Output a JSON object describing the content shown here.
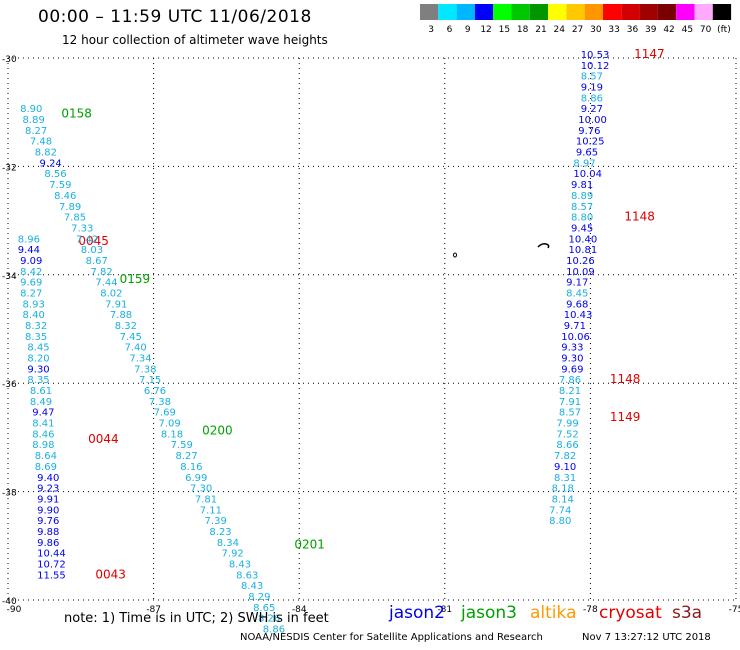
{
  "header": {
    "title": "00:00 – 11:59 UTC 11/06/2018",
    "subtitle": "12 hour collection of altimeter wave heights"
  },
  "colorbar": {
    "labels": [
      "3",
      "6",
      "9",
      "12",
      "15",
      "18",
      "21",
      "24",
      "27",
      "30",
      "33",
      "36",
      "39",
      "42",
      "45",
      "70",
      "(ft)"
    ],
    "colors": [
      "#7f7f7f",
      "#00e8ff",
      "#00b7ff",
      "#0000ff",
      "#00ff00",
      "#00c800",
      "#009600",
      "#ffff00",
      "#ffc800",
      "#ff9600",
      "#ff0000",
      "#d20000",
      "#a00000",
      "#780000",
      "#ff00ff",
      "#ffaaff",
      "#000000"
    ]
  },
  "footer": {
    "note": "note: 1) Time is in UTC; 2) SWH is in feet",
    "credit": "NOAA/NESDIS Center for Satellite Applications and Research",
    "timestamp": "Nov  7 13:27:12 UTC 2018"
  },
  "missions": {
    "jason2": "jason2",
    "jason3": "jason3",
    "altika": "altika",
    "cryosat": "cryosat",
    "s3a": "s3a"
  },
  "colors": {
    "jason2": "#0000ee",
    "jason3": "#00a000",
    "cryosat": "#e00000",
    "light": "#1ab0e0"
  },
  "chart_data": {
    "type": "scatter",
    "xlim": [
      -90,
      -75
    ],
    "ylim": [
      -40,
      -30
    ],
    "x_ticks": [
      "-90",
      "-87",
      "-84",
      "-81",
      "-78",
      "-75"
    ],
    "y_ticks": [
      "-30",
      "-32",
      "-34",
      "-36",
      "-38",
      "-40"
    ],
    "grid": true,
    "tracks": [
      {
        "mission": "jason2",
        "times": [
          {
            "label": "0043",
            "x": -88.2,
            "y": -39.6
          },
          {
            "label": "0044",
            "x": -88.35,
            "y": -37.1
          },
          {
            "label": "0045",
            "x": -88.55,
            "y": -33.45
          }
        ],
        "points": [
          {
            "x": -89.4,
            "y": -39.6,
            "v": "11.55",
            "c": "jason2"
          },
          {
            "x": -89.4,
            "y": -39.4,
            "v": "10.72",
            "c": "jason2"
          },
          {
            "x": -89.4,
            "y": -39.2,
            "v": "10.44",
            "c": "jason2"
          },
          {
            "x": -89.4,
            "y": -39.0,
            "v": "9.86",
            "c": "jason2"
          },
          {
            "x": -89.4,
            "y": -38.8,
            "v": "9.88",
            "c": "jason2"
          },
          {
            "x": -89.4,
            "y": -38.6,
            "v": "9.76",
            "c": "jason2"
          },
          {
            "x": -89.4,
            "y": -38.4,
            "v": "9.90",
            "c": "jason2"
          },
          {
            "x": -89.4,
            "y": -38.2,
            "v": "9.91",
            "c": "jason2"
          },
          {
            "x": -89.4,
            "y": -38.0,
            "v": "9.23",
            "c": "jason2"
          },
          {
            "x": -89.4,
            "y": -37.8,
            "v": "9.40",
            "c": "jason2"
          },
          {
            "x": -89.45,
            "y": -37.6,
            "v": "8.69",
            "c": "light"
          },
          {
            "x": -89.45,
            "y": -37.4,
            "v": "8.64",
            "c": "light"
          },
          {
            "x": -89.5,
            "y": -37.2,
            "v": "8.98",
            "c": "light"
          },
          {
            "x": -89.5,
            "y": -37.0,
            "v": "8.46",
            "c": "light"
          },
          {
            "x": -89.5,
            "y": -36.8,
            "v": "8.41",
            "c": "light"
          },
          {
            "x": -89.5,
            "y": -36.6,
            "v": "9.47",
            "c": "jason2"
          },
          {
            "x": -89.55,
            "y": -36.4,
            "v": "8.49",
            "c": "light"
          },
          {
            "x": -89.55,
            "y": -36.2,
            "v": "8.61",
            "c": "light"
          },
          {
            "x": -89.6,
            "y": -36.0,
            "v": "8.35",
            "c": "light"
          },
          {
            "x": -89.6,
            "y": -35.8,
            "v": "9.30",
            "c": "jason2"
          },
          {
            "x": -89.6,
            "y": -35.6,
            "v": "8.20",
            "c": "light"
          },
          {
            "x": -89.6,
            "y": -35.4,
            "v": "8.45",
            "c": "light"
          },
          {
            "x": -89.65,
            "y": -35.2,
            "v": "8.35",
            "c": "light"
          },
          {
            "x": -89.65,
            "y": -35.0,
            "v": "8.32",
            "c": "light"
          },
          {
            "x": -89.7,
            "y": -34.8,
            "v": "8.40",
            "c": "light"
          },
          {
            "x": -89.7,
            "y": -34.6,
            "v": "8.93",
            "c": "light"
          },
          {
            "x": -89.75,
            "y": -34.4,
            "v": "8.27",
            "c": "light"
          },
          {
            "x": -89.75,
            "y": -34.2,
            "v": "9.69",
            "c": "light"
          },
          {
            "x": -89.75,
            "y": -34.0,
            "v": "8.42",
            "c": "light"
          },
          {
            "x": -89.75,
            "y": -33.8,
            "v": "9.09",
            "c": "jason2"
          },
          {
            "x": -89.8,
            "y": -33.6,
            "v": "9.44",
            "c": "jason2"
          },
          {
            "x": -89.8,
            "y": -33.4,
            "v": "8.96",
            "c": "light"
          }
        ]
      },
      {
        "mission": "jason3",
        "times": [
          {
            "label": "0158",
            "x": -88.9,
            "y": -31.1
          },
          {
            "label": "0159",
            "x": -87.7,
            "y": -34.15
          },
          {
            "label": "0200",
            "x": -86.0,
            "y": -36.95
          },
          {
            "label": "0201",
            "x": -84.1,
            "y": -39.05
          }
        ],
        "points": [
          {
            "x": -89.75,
            "y": -31.0,
            "v": "8.90",
            "c": "light"
          },
          {
            "x": -89.7,
            "y": -31.2,
            "v": "8.89",
            "c": "light"
          },
          {
            "x": -89.65,
            "y": -31.4,
            "v": "8.27",
            "c": "light"
          },
          {
            "x": -89.55,
            "y": -31.6,
            "v": "7.48",
            "c": "light"
          },
          {
            "x": -89.45,
            "y": -31.8,
            "v": "8.82",
            "c": "light"
          },
          {
            "x": -89.35,
            "y": -32.0,
            "v": "9.24",
            "c": "jason2"
          },
          {
            "x": -89.25,
            "y": -32.2,
            "v": "8.56",
            "c": "light"
          },
          {
            "x": -89.15,
            "y": -32.4,
            "v": "7.59",
            "c": "light"
          },
          {
            "x": -89.05,
            "y": -32.6,
            "v": "8.46",
            "c": "light"
          },
          {
            "x": -88.95,
            "y": -32.8,
            "v": "7.89",
            "c": "light"
          },
          {
            "x": -88.85,
            "y": -33.0,
            "v": "7.85",
            "c": "light"
          },
          {
            "x": -88.7,
            "y": -33.2,
            "v": "7.33",
            "c": "light"
          },
          {
            "x": -88.6,
            "y": -33.4,
            "v": "7.42",
            "c": "light"
          },
          {
            "x": -88.5,
            "y": -33.6,
            "v": "8.03",
            "c": "light"
          },
          {
            "x": -88.4,
            "y": -33.8,
            "v": "8.67",
            "c": "light"
          },
          {
            "x": -88.3,
            "y": -34.0,
            "v": "7.82",
            "c": "light"
          },
          {
            "x": -88.2,
            "y": -34.2,
            "v": "7.44",
            "c": "light"
          },
          {
            "x": -88.1,
            "y": -34.4,
            "v": "8.02",
            "c": "light"
          },
          {
            "x": -88.0,
            "y": -34.6,
            "v": "7.91",
            "c": "light"
          },
          {
            "x": -87.9,
            "y": -34.8,
            "v": "7.88",
            "c": "light"
          },
          {
            "x": -87.8,
            "y": -35.0,
            "v": "8.32",
            "c": "light"
          },
          {
            "x": -87.7,
            "y": -35.2,
            "v": "7.45",
            "c": "light"
          },
          {
            "x": -87.6,
            "y": -35.4,
            "v": "7.40",
            "c": "light"
          },
          {
            "x": -87.5,
            "y": -35.6,
            "v": "7.34",
            "c": "light"
          },
          {
            "x": -87.4,
            "y": -35.8,
            "v": "7.38",
            "c": "light"
          },
          {
            "x": -87.3,
            "y": -36.0,
            "v": "7.15",
            "c": "light"
          },
          {
            "x": -87.2,
            "y": -36.2,
            "v": "6.76",
            "c": "light"
          },
          {
            "x": -87.1,
            "y": -36.4,
            "v": "7.38",
            "c": "light"
          },
          {
            "x": -87.0,
            "y": -36.6,
            "v": "7.69",
            "c": "light"
          },
          {
            "x": -86.9,
            "y": -36.8,
            "v": "7.09",
            "c": "light"
          },
          {
            "x": -86.85,
            "y": -37.0,
            "v": "8.18",
            "c": "light"
          },
          {
            "x": -86.65,
            "y": -37.2,
            "v": "7.59",
            "c": "light"
          },
          {
            "x": -86.55,
            "y": -37.4,
            "v": "8.27",
            "c": "light"
          },
          {
            "x": -86.45,
            "y": -37.6,
            "v": "8.16",
            "c": "light"
          },
          {
            "x": -86.35,
            "y": -37.8,
            "v": "6.99",
            "c": "light"
          },
          {
            "x": -86.25,
            "y": -38.0,
            "v": "7.30",
            "c": "light"
          },
          {
            "x": -86.15,
            "y": -38.2,
            "v": "7.81",
            "c": "light"
          },
          {
            "x": -86.05,
            "y": -38.4,
            "v": "7.11",
            "c": "light"
          },
          {
            "x": -85.95,
            "y": -38.6,
            "v": "7.39",
            "c": "light"
          },
          {
            "x": -85.85,
            "y": -38.8,
            "v": "8.23",
            "c": "light"
          },
          {
            "x": -85.7,
            "y": -39.0,
            "v": "8.34",
            "c": "light"
          },
          {
            "x": -85.6,
            "y": -39.2,
            "v": "7.92",
            "c": "light"
          },
          {
            "x": -85.45,
            "y": -39.4,
            "v": "8.43",
            "c": "light"
          },
          {
            "x": -85.3,
            "y": -39.6,
            "v": "8.63",
            "c": "light"
          },
          {
            "x": -85.2,
            "y": -39.8,
            "v": "8.43",
            "c": "light"
          },
          {
            "x": -85.05,
            "y": -40.0,
            "v": "8.29",
            "c": "light"
          },
          {
            "x": -84.95,
            "y": -40.2,
            "v": "8.65",
            "c": "light"
          },
          {
            "x": -84.85,
            "y": -40.4,
            "v": "8.26",
            "c": "light"
          },
          {
            "x": -84.75,
            "y": -40.6,
            "v": "8.86",
            "c": "light"
          }
        ]
      },
      {
        "mission": "cryosat",
        "times": [
          {
            "label": "1147",
            "x": -77.1,
            "y": -30.0
          },
          {
            "label": "1148",
            "x": -77.3,
            "y": -33.0
          },
          {
            "label": "1148",
            "x": -77.6,
            "y": -36.0
          },
          {
            "label": "1149",
            "x": -77.6,
            "y": -36.7
          }
        ],
        "points": [
          {
            "x": -78.2,
            "y": -30.0,
            "v": "10.53",
            "c": "jason2"
          },
          {
            "x": -78.2,
            "y": -30.2,
            "v": "10.12",
            "c": "jason2"
          },
          {
            "x": -78.2,
            "y": -30.4,
            "v": "8.57",
            "c": "light"
          },
          {
            "x": -78.2,
            "y": -30.6,
            "v": "9.19",
            "c": "jason2"
          },
          {
            "x": -78.2,
            "y": -30.8,
            "v": "8.86",
            "c": "light"
          },
          {
            "x": -78.2,
            "y": -31.0,
            "v": "9.27",
            "c": "jason2"
          },
          {
            "x": -78.25,
            "y": -31.2,
            "v": "10.00",
            "c": "jason2"
          },
          {
            "x": -78.25,
            "y": -31.4,
            "v": "9.76",
            "c": "jason2"
          },
          {
            "x": -78.3,
            "y": -31.6,
            "v": "10.25",
            "c": "jason2"
          },
          {
            "x": -78.3,
            "y": -31.8,
            "v": "9.65",
            "c": "jason2"
          },
          {
            "x": -78.35,
            "y": -32.0,
            "v": "8.97",
            "c": "light"
          },
          {
            "x": -78.35,
            "y": -32.2,
            "v": "10.04",
            "c": "jason2"
          },
          {
            "x": -78.4,
            "y": -32.4,
            "v": "9.81",
            "c": "jason2"
          },
          {
            "x": -78.4,
            "y": -32.6,
            "v": "8.89",
            "c": "light"
          },
          {
            "x": -78.4,
            "y": -32.8,
            "v": "8.57",
            "c": "light"
          },
          {
            "x": -78.4,
            "y": -33.0,
            "v": "8.80",
            "c": "light"
          },
          {
            "x": -78.4,
            "y": -33.2,
            "v": "9.45",
            "c": "jason2"
          },
          {
            "x": -78.45,
            "y": -33.4,
            "v": "10.40",
            "c": "jason2"
          },
          {
            "x": -78.45,
            "y": -33.6,
            "v": "10.81",
            "c": "jason2"
          },
          {
            "x": -78.5,
            "y": -33.8,
            "v": "10.26",
            "c": "jason2"
          },
          {
            "x": -78.5,
            "y": -34.0,
            "v": "10.09",
            "c": "jason2"
          },
          {
            "x": -78.5,
            "y": -34.2,
            "v": "9.17",
            "c": "jason2"
          },
          {
            "x": -78.5,
            "y": -34.4,
            "v": "8.45",
            "c": "light"
          },
          {
            "x": -78.5,
            "y": -34.6,
            "v": "9.68",
            "c": "jason2"
          },
          {
            "x": -78.55,
            "y": -34.8,
            "v": "10.43",
            "c": "jason2"
          },
          {
            "x": -78.55,
            "y": -35.0,
            "v": "9.71",
            "c": "jason2"
          },
          {
            "x": -78.6,
            "y": -35.2,
            "v": "10.06",
            "c": "jason2"
          },
          {
            "x": -78.6,
            "y": -35.4,
            "v": "9.33",
            "c": "jason2"
          },
          {
            "x": -78.6,
            "y": -35.6,
            "v": "9.30",
            "c": "jason2"
          },
          {
            "x": -78.6,
            "y": -35.8,
            "v": "9.69",
            "c": "jason2"
          },
          {
            "x": -78.65,
            "y": -36.0,
            "v": "7.86",
            "c": "light"
          },
          {
            "x": -78.65,
            "y": -36.2,
            "v": "8.21",
            "c": "light"
          },
          {
            "x": -78.65,
            "y": -36.4,
            "v": "7.91",
            "c": "light"
          },
          {
            "x": -78.65,
            "y": -36.6,
            "v": "8.57",
            "c": "light"
          },
          {
            "x": -78.7,
            "y": -36.8,
            "v": "7.99",
            "c": "light"
          },
          {
            "x": -78.7,
            "y": -37.0,
            "v": "7.52",
            "c": "light"
          },
          {
            "x": -78.7,
            "y": -37.2,
            "v": "8.66",
            "c": "light"
          },
          {
            "x": -78.75,
            "y": -37.4,
            "v": "7.82",
            "c": "light"
          },
          {
            "x": -78.75,
            "y": -37.6,
            "v": "9.10",
            "c": "jason2"
          },
          {
            "x": -78.75,
            "y": -37.8,
            "v": "8.31",
            "c": "light"
          },
          {
            "x": -78.8,
            "y": -38.0,
            "v": "8.18",
            "c": "light"
          },
          {
            "x": -78.8,
            "y": -38.2,
            "v": "8.14",
            "c": "light"
          },
          {
            "x": -78.85,
            "y": -38.4,
            "v": "7.74",
            "c": "light"
          },
          {
            "x": -78.85,
            "y": -38.6,
            "v": "8.80",
            "c": "light"
          }
        ]
      }
    ]
  }
}
